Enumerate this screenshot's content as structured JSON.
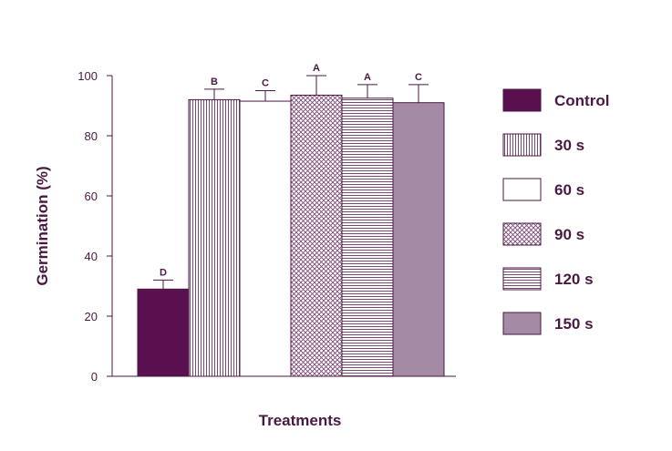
{
  "chart_data": {
    "type": "bar",
    "xlabel": "Treatments",
    "ylabel": "Germination (%)",
    "ylim": [
      0,
      100
    ],
    "yticks": [
      0,
      20,
      40,
      60,
      80,
      100
    ],
    "grid": false,
    "legend_placement": "right",
    "categories": [
      "Control",
      "30 s",
      "60 s",
      "90 s",
      "120 s",
      "150 s"
    ],
    "series": [
      {
        "values": [
          29,
          92,
          91.5,
          93.5,
          92.5,
          91
        ],
        "errors": [
          3,
          3.5,
          3.5,
          6.5,
          4.5,
          6
        ],
        "letters": [
          "D",
          "B",
          "C",
          "A",
          "A",
          "C"
        ],
        "patterns": [
          "solid-dark",
          "vertical-lines",
          "white",
          "crosshatch",
          "horizontal-lines",
          "solid-light"
        ]
      }
    ],
    "colors": {
      "text": "#4a1942",
      "control": "#5a0f4f",
      "pattern_line": "#7a4a74",
      "light_fill": "#a58aa6"
    }
  }
}
